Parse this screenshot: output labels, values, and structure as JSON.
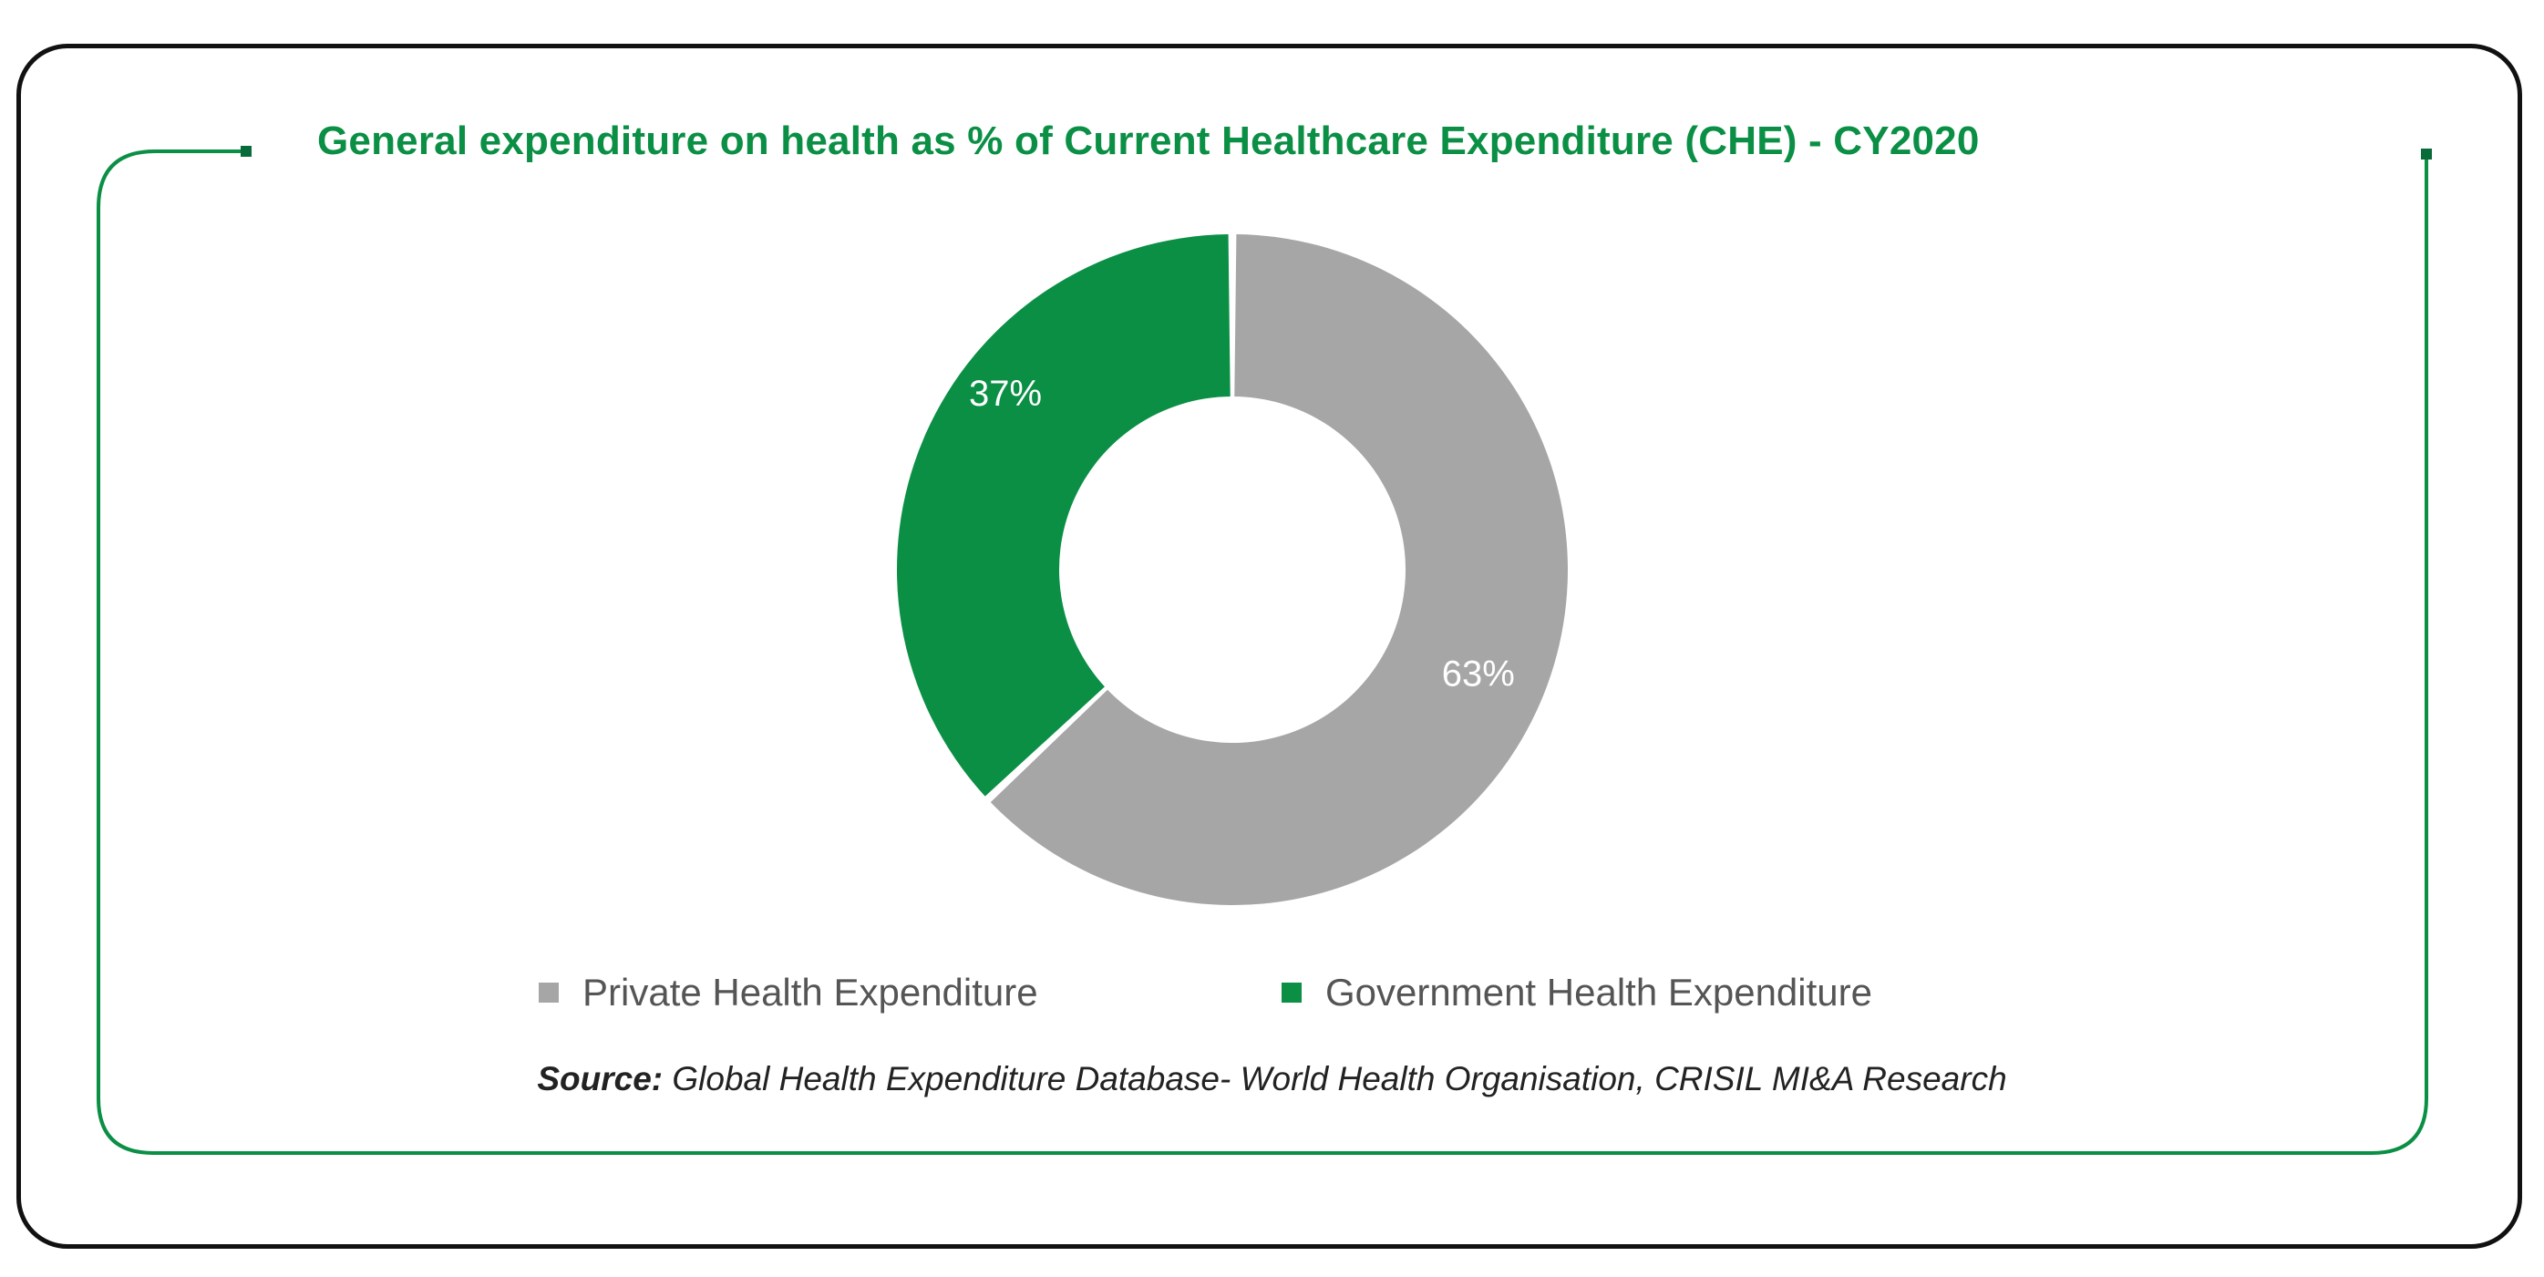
{
  "chart_data": {
    "type": "pie",
    "title": "General expenditure on health as % of Current Healthcare Expenditure (CHE) - CY2020",
    "donut": true,
    "slices": [
      {
        "name": "Private Health Expenditure",
        "value": 63,
        "label": "63%",
        "color": "#a6a6a6"
      },
      {
        "name": "Government Health Expenditure",
        "value": 37,
        "label": "37%",
        "color": "#0a8f45"
      }
    ],
    "legend": {
      "placement": "bottom",
      "entries": [
        "Private Health Expenditure",
        "Government Health Expenditure"
      ]
    }
  },
  "source": {
    "prefix": "Source:",
    "text": " Global Health Expenditure Database- World Health Organisation, CRISIL MI&A Research"
  },
  "colors": {
    "accent": "#0a8f45",
    "grey": "#a6a6a6",
    "frame": "#111111"
  }
}
